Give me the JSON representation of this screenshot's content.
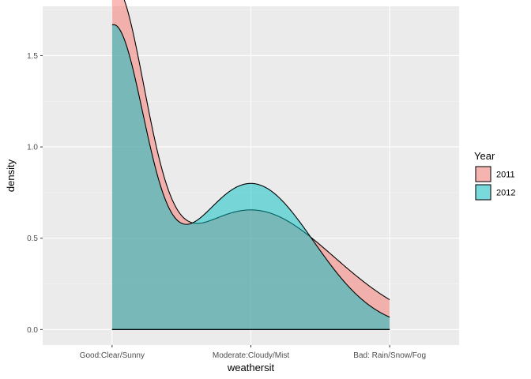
{
  "chart_data": {
    "type": "area",
    "xlabel": "weathersit",
    "ylabel": "density",
    "categories": [
      "Good:Clear/Sunny",
      "Moderate:Cloudy/Mist",
      "Bad: Rain/Snow/Fog"
    ],
    "x_range": [
      0.5,
      3.5
    ],
    "ylim": [
      -0.085,
      1.77
    ],
    "y_ticks": [
      0.0,
      0.5,
      1.0,
      1.5
    ],
    "y_tick_labels": [
      "0.0",
      "0.5",
      "1.0",
      "1.5"
    ],
    "grid": true,
    "legend": {
      "title": "Year",
      "position": "right"
    },
    "series": [
      {
        "name": "2011",
        "color": "#F8766D",
        "components": [
          {
            "label": "Good:Clear/Sunny",
            "peak_x": 1.0,
            "peak_density": 1.72,
            "sd": 0.23,
            "range": [
              1.0,
              3.0
            ]
          },
          {
            "label": "Moderate:Cloudy/Mist",
            "peak_x": 2.0,
            "peak_density": 0.655,
            "sd": 0.6,
            "range": [
              1.0,
              3.0
            ]
          }
        ]
      },
      {
        "name": "2012",
        "color": "#00BFC4",
        "components": [
          {
            "label": "Good:Clear/Sunny",
            "peak_x": 1.0,
            "peak_density": 1.6,
            "sd": 0.23,
            "range": [
              1.0,
              3.0
            ]
          },
          {
            "label": "Moderate:Cloudy/Mist",
            "peak_x": 2.0,
            "peak_density": 0.8,
            "sd": 0.45,
            "range": [
              1.0,
              3.0
            ]
          }
        ]
      }
    ]
  }
}
